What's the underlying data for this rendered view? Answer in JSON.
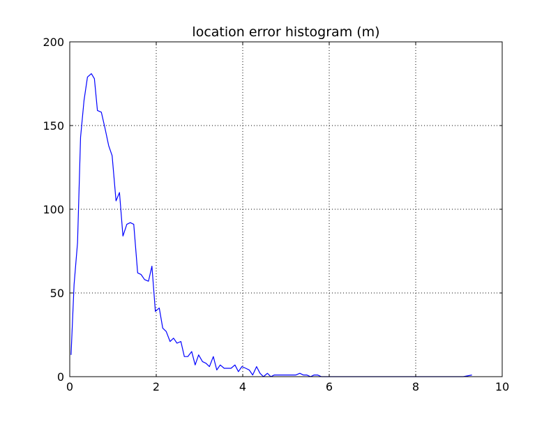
{
  "chart_data": {
    "type": "line",
    "title": "location error histogram (m)",
    "xlabel": "",
    "ylabel": "",
    "xlim": [
      0,
      10
    ],
    "ylim": [
      0,
      200
    ],
    "xticks": [
      0,
      2,
      4,
      6,
      8,
      10
    ],
    "yticks": [
      0,
      50,
      100,
      150,
      200
    ],
    "grid": true,
    "legend": "none",
    "series": [
      {
        "color": "#0000ff",
        "x": [
          0.03,
          0.1,
          0.18,
          0.25,
          0.33,
          0.41,
          0.5,
          0.57,
          0.64,
          0.73,
          0.81,
          0.9,
          0.98,
          1.07,
          1.15,
          1.23,
          1.32,
          1.4,
          1.48,
          1.57,
          1.65,
          1.73,
          1.82,
          1.9,
          1.98,
          2.07,
          2.15,
          2.23,
          2.32,
          2.4,
          2.48,
          2.57,
          2.65,
          2.73,
          2.82,
          2.9,
          2.98,
          3.07,
          3.15,
          3.23,
          3.32,
          3.4,
          3.48,
          3.57,
          3.65,
          3.73,
          3.82,
          3.9,
          3.98,
          4.07,
          4.15,
          4.23,
          4.32,
          4.4,
          4.48,
          4.57,
          4.65,
          4.73,
          4.82,
          4.9,
          4.98,
          5.07,
          5.15,
          5.23,
          5.32,
          5.4,
          5.48,
          5.57,
          5.65,
          5.73,
          5.82,
          5.9,
          5.98,
          6.07,
          6.15,
          6.23,
          6.32,
          6.4,
          6.48,
          6.57,
          6.65,
          6.73,
          6.82,
          6.9,
          6.98,
          7.1,
          7.3,
          7.5,
          7.7,
          7.9,
          8.1,
          8.3,
          8.5,
          8.7,
          8.9,
          9.1,
          9.3
        ],
        "y": [
          13,
          55,
          80,
          143,
          165,
          179,
          181,
          178,
          159,
          158,
          149,
          138,
          132,
          105,
          110,
          84,
          91,
          92,
          91,
          62,
          61,
          58,
          57,
          66,
          39,
          41,
          29,
          27,
          21,
          23,
          20,
          21,
          12,
          12,
          15,
          7,
          13,
          9,
          8,
          6,
          12,
          4,
          7,
          5,
          5,
          5,
          7,
          3,
          6,
          5,
          4,
          1,
          6,
          2,
          0,
          2,
          0,
          1,
          1,
          1,
          1,
          1,
          1,
          1,
          2,
          1,
          1,
          0,
          1,
          1,
          0,
          0,
          0,
          0,
          0,
          0,
          0,
          0,
          0,
          0,
          0,
          0,
          0,
          0,
          0,
          0,
          0,
          0,
          0,
          0,
          0,
          0,
          0,
          0,
          0,
          0,
          1
        ]
      }
    ]
  }
}
